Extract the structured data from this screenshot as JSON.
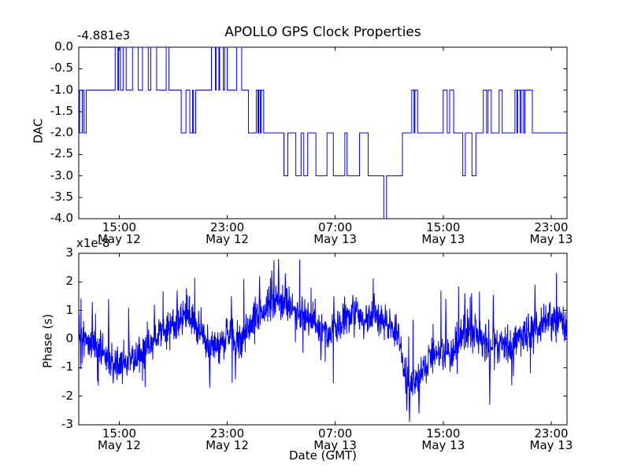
{
  "figure": {
    "title": "APOLLO GPS Clock Properties",
    "background_color": "#ffffff",
    "line_color": "#0000ff",
    "axis_color": "#000000",
    "text_color": "#000000"
  },
  "top_plot": {
    "ylabel": "DAC",
    "offset_text": "-4.881e3",
    "ytick_labels": [
      "0.0",
      "-0.5",
      "-1.0",
      "-1.5",
      "-2.0",
      "-2.5",
      "-3.0",
      "-3.5",
      "-4.0"
    ],
    "ytick_values": [
      0,
      -0.5,
      -1,
      -1.5,
      -2,
      -2.5,
      -3,
      -3.5,
      -4
    ],
    "ylim": [
      -4,
      0
    ]
  },
  "bottom_plot": {
    "ylabel": "Phase (s)",
    "multiplier_text": "x1e-8",
    "xlabel": "Date (GMT)",
    "ytick_labels": [
      "3",
      "2",
      "1",
      "0",
      "-1",
      "-2",
      "-3"
    ],
    "ytick_values": [
      3,
      2,
      1,
      0,
      -1,
      -2,
      -3
    ],
    "ylim": [
      -3,
      3
    ]
  },
  "x_axis": {
    "tick_time_labels": [
      "15:00",
      "23:00",
      "07:00",
      "15:00",
      "23:00"
    ],
    "tick_date_labels": [
      "May 12",
      "May 12",
      "May 13",
      "May 13",
      "May 13"
    ],
    "tick_hours": [
      15,
      23,
      31,
      39,
      47
    ],
    "xlim_hours": [
      12.0,
      48.17
    ],
    "unit": "hours since May 12 00:00 GMT"
  },
  "chart_data": [
    {
      "type": "line",
      "subplot": "top",
      "style": "step",
      "title": "APOLLO GPS Clock Properties",
      "ylabel": "DAC",
      "y_offset_text": "-4.881e3",
      "ylim": [
        -4,
        0
      ],
      "xlim": [
        12.0,
        48.17
      ],
      "x_unit": "hours since May 12 00:00 GMT",
      "steps": [
        [
          12.0,
          -1
        ],
        [
          12.06,
          -2
        ],
        [
          12.26,
          -1
        ],
        [
          12.39,
          -2
        ],
        [
          12.56,
          -1
        ],
        [
          14.7,
          0
        ],
        [
          14.9,
          -1
        ],
        [
          14.96,
          0
        ],
        [
          15.1,
          -1
        ],
        [
          15.29,
          0
        ],
        [
          15.51,
          -1
        ],
        [
          15.98,
          0
        ],
        [
          16.41,
          -1
        ],
        [
          16.72,
          0
        ],
        [
          17.15,
          -1
        ],
        [
          17.34,
          0
        ],
        [
          17.77,
          -1
        ],
        [
          18.48,
          0
        ],
        [
          18.67,
          -1
        ],
        [
          19.59,
          -2
        ],
        [
          19.94,
          -1
        ],
        [
          20.23,
          -2
        ],
        [
          20.43,
          -1
        ],
        [
          20.5,
          -2
        ],
        [
          20.66,
          -1
        ],
        [
          21.83,
          0
        ],
        [
          22.12,
          -1
        ],
        [
          22.17,
          0
        ],
        [
          22.38,
          -1
        ],
        [
          22.44,
          0
        ],
        [
          22.71,
          -1
        ],
        [
          22.81,
          0
        ],
        [
          23.0,
          -1
        ],
        [
          23.69,
          0
        ],
        [
          24.07,
          -1
        ],
        [
          24.57,
          -2
        ],
        [
          25.15,
          -1
        ],
        [
          25.27,
          -2
        ],
        [
          25.33,
          -1
        ],
        [
          25.45,
          -2
        ],
        [
          25.52,
          -1
        ],
        [
          25.7,
          -2
        ],
        [
          27.2,
          -3
        ],
        [
          27.49,
          -2
        ],
        [
          28.08,
          -3
        ],
        [
          28.47,
          -2
        ],
        [
          28.67,
          -3
        ],
        [
          28.96,
          -2
        ],
        [
          29.57,
          -3
        ],
        [
          30.39,
          -2
        ],
        [
          30.86,
          -3
        ],
        [
          31.71,
          -2
        ],
        [
          31.88,
          -3
        ],
        [
          32.8,
          -2
        ],
        [
          33.44,
          -3
        ],
        [
          34.6,
          -4
        ],
        [
          34.8,
          -3
        ],
        [
          35.98,
          -2
        ],
        [
          36.67,
          -1
        ],
        [
          36.84,
          -2
        ],
        [
          36.9,
          -1
        ],
        [
          37.1,
          -2
        ],
        [
          39.0,
          -1
        ],
        [
          39.29,
          -2
        ],
        [
          39.48,
          -1
        ],
        [
          39.77,
          -2
        ],
        [
          40.45,
          -3
        ],
        [
          40.64,
          -2
        ],
        [
          41.13,
          -3
        ],
        [
          41.42,
          -2
        ],
        [
          41.97,
          -1
        ],
        [
          42.21,
          -2
        ],
        [
          42.32,
          -1
        ],
        [
          42.56,
          -2
        ],
        [
          43.14,
          -1
        ],
        [
          43.37,
          -2
        ],
        [
          44.31,
          -1
        ],
        [
          44.45,
          -2
        ],
        [
          44.52,
          -1
        ],
        [
          44.7,
          -2
        ],
        [
          44.78,
          -1
        ],
        [
          44.95,
          -2
        ],
        [
          45.05,
          -1
        ],
        [
          45.6,
          -2
        ]
      ]
    },
    {
      "type": "line",
      "subplot": "bottom",
      "ylabel": "Phase (s)",
      "y_scale": "1e-8",
      "ylim": [
        -3,
        3
      ],
      "xlim": [
        12.0,
        48.17
      ],
      "xlabel": "Date (GMT)",
      "x_unit": "hours since May 12 00:00 GMT",
      "n_points": 1800,
      "noise_std": 0.32,
      "start_value": 0.9,
      "mean_path": [
        [
          12.0,
          0.9
        ],
        [
          12.1,
          0.0
        ],
        [
          12.5,
          -0.05
        ],
        [
          13.0,
          -0.1
        ],
        [
          13.5,
          -0.25
        ],
        [
          14.0,
          -0.6
        ],
        [
          14.5,
          -0.9
        ],
        [
          15.0,
          -0.85
        ],
        [
          15.5,
          -0.8
        ],
        [
          16.0,
          -0.7
        ],
        [
          16.5,
          -0.5
        ],
        [
          17.0,
          -0.35
        ],
        [
          17.5,
          -0.1
        ],
        [
          18.0,
          0.1
        ],
        [
          18.5,
          0.3
        ],
        [
          19.0,
          0.5
        ],
        [
          19.5,
          0.75
        ],
        [
          20.0,
          0.85
        ],
        [
          20.5,
          0.7
        ],
        [
          21.0,
          0.2
        ],
        [
          21.5,
          -0.35
        ],
        [
          22.0,
          -0.4
        ],
        [
          22.5,
          -0.15
        ],
        [
          23.0,
          0.15
        ],
        [
          23.5,
          0.05
        ],
        [
          24.0,
          -0.15
        ],
        [
          24.5,
          0.3
        ],
        [
          25.0,
          0.7
        ],
        [
          25.5,
          0.9
        ],
        [
          26.0,
          1.1
        ],
        [
          26.5,
          1.4
        ],
        [
          27.0,
          1.3
        ],
        [
          27.5,
          1.1
        ],
        [
          28.0,
          0.9
        ],
        [
          28.5,
          0.75
        ],
        [
          29.0,
          0.8
        ],
        [
          29.5,
          0.6
        ],
        [
          30.0,
          0.35
        ],
        [
          30.5,
          0.2
        ],
        [
          31.0,
          0.3
        ],
        [
          31.5,
          0.55
        ],
        [
          32.0,
          0.8
        ],
        [
          32.5,
          0.95
        ],
        [
          33.0,
          0.8
        ],
        [
          33.5,
          0.7
        ],
        [
          34.0,
          0.8
        ],
        [
          34.5,
          0.65
        ],
        [
          35.0,
          0.45
        ],
        [
          35.5,
          0.25
        ],
        [
          35.8,
          0.0
        ],
        [
          36.2,
          -1.2
        ],
        [
          36.6,
          -1.6
        ],
        [
          37.0,
          -1.5
        ],
        [
          37.5,
          -1.15
        ],
        [
          38.0,
          -0.75
        ],
        [
          38.5,
          -0.5
        ],
        [
          39.0,
          -0.4
        ],
        [
          39.5,
          -0.55
        ],
        [
          40.0,
          -0.2
        ],
        [
          40.5,
          0.15
        ],
        [
          41.0,
          0.3
        ],
        [
          41.5,
          0.05
        ],
        [
          42.0,
          -0.1
        ],
        [
          42.5,
          -0.35
        ],
        [
          43.0,
          -0.1
        ],
        [
          43.5,
          -0.25
        ],
        [
          44.0,
          -0.1
        ],
        [
          44.5,
          0.0
        ],
        [
          45.0,
          0.1
        ],
        [
          45.5,
          0.3
        ],
        [
          46.0,
          0.45
        ],
        [
          46.5,
          0.55
        ],
        [
          47.0,
          0.6
        ],
        [
          47.5,
          0.7
        ],
        [
          48.0,
          0.65
        ]
      ],
      "spike_points": [
        [
          13.0,
          1.3
        ],
        [
          14.2,
          1.4
        ],
        [
          14.55,
          -1.55
        ],
        [
          17.6,
          1.2
        ],
        [
          19.3,
          1.7
        ],
        [
          21.7,
          -1.7
        ],
        [
          23.3,
          1.5
        ],
        [
          23.6,
          -1.4
        ],
        [
          25.4,
          2.2
        ],
        [
          26.3,
          2.4
        ],
        [
          26.8,
          2.8
        ],
        [
          27.3,
          2.3
        ],
        [
          30.9,
          1.5
        ],
        [
          32.3,
          1.55
        ],
        [
          33.9,
          1.6
        ],
        [
          36.3,
          -2.5
        ],
        [
          36.5,
          -2.9
        ],
        [
          37.2,
          -2.6
        ],
        [
          39.2,
          1.4
        ],
        [
          40.6,
          1.6
        ],
        [
          41.1,
          1.6
        ],
        [
          42.45,
          -2.3
        ],
        [
          42.7,
          1.55
        ],
        [
          44.2,
          -1.3
        ],
        [
          45.8,
          1.9
        ],
        [
          46.9,
          1.3
        ]
      ]
    }
  ]
}
